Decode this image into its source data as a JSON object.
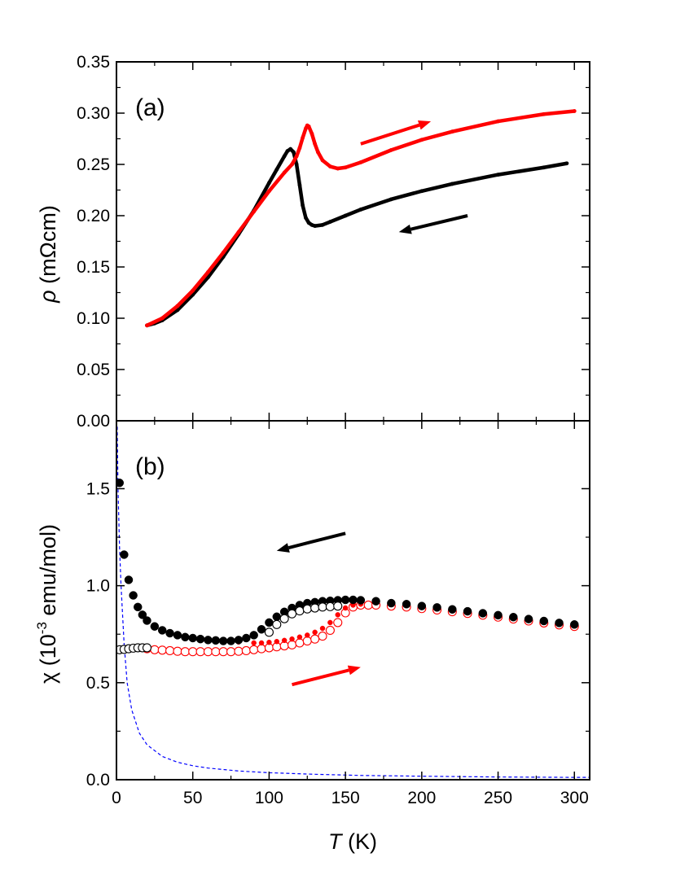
{
  "colors": {
    "cooling": "#000000",
    "warming": "#ff0000",
    "fit": "#0000ff"
  },
  "shared_xaxis": {
    "title_var": "T",
    "title_unit": " (K)",
    "xlim": [
      0,
      310
    ],
    "ticks": [
      0,
      50,
      100,
      150,
      200,
      250,
      300
    ],
    "tick_labels": [
      "0",
      "50",
      "100",
      "150",
      "200",
      "250",
      "300"
    ]
  },
  "chart_data": [
    {
      "type": "line",
      "panel_label": "(a)",
      "ylabel_symbol": "ρ",
      "ylabel_unit": " (mΩcm)",
      "xlim": [
        0,
        310
      ],
      "ylim": [
        0,
        0.35
      ],
      "yticks": [
        0,
        0.05,
        0.1,
        0.15,
        0.2,
        0.25,
        0.3,
        0.35
      ],
      "ytick_labels": [
        "0.00",
        "0.05",
        "0.10",
        "0.15",
        "0.20",
        "0.25",
        "0.30",
        "0.35"
      ],
      "grid": false,
      "legend": "none",
      "series": [
        {
          "key": "cooling",
          "color": "#000000",
          "x": [
            20,
            25,
            30,
            40,
            50,
            60,
            70,
            80,
            90,
            100,
            105,
            110,
            112,
            114,
            116,
            118,
            120,
            122,
            124,
            126,
            128,
            130,
            135,
            140,
            150,
            160,
            180,
            200,
            220,
            250,
            280,
            295
          ],
          "y": [
            0.093,
            0.095,
            0.098,
            0.108,
            0.123,
            0.14,
            0.16,
            0.182,
            0.205,
            0.232,
            0.245,
            0.258,
            0.263,
            0.265,
            0.262,
            0.25,
            0.23,
            0.21,
            0.198,
            0.193,
            0.191,
            0.19,
            0.191,
            0.194,
            0.2,
            0.206,
            0.216,
            0.224,
            0.231,
            0.24,
            0.247,
            0.251
          ]
        },
        {
          "key": "warming",
          "color": "#ff0000",
          "x": [
            20,
            30,
            40,
            50,
            60,
            70,
            80,
            90,
            100,
            110,
            115,
            118,
            120,
            122,
            124,
            125,
            126,
            128,
            130,
            132,
            135,
            140,
            145,
            150,
            160,
            180,
            200,
            220,
            250,
            280,
            300
          ],
          "y": [
            0.093,
            0.1,
            0.112,
            0.127,
            0.145,
            0.164,
            0.184,
            0.204,
            0.224,
            0.242,
            0.25,
            0.258,
            0.266,
            0.276,
            0.285,
            0.288,
            0.287,
            0.28,
            0.27,
            0.262,
            0.254,
            0.248,
            0.246,
            0.247,
            0.252,
            0.264,
            0.274,
            0.282,
            0.292,
            0.299,
            0.302
          ]
        }
      ],
      "arrows": [
        {
          "series": "warming",
          "from": [
            160,
            0.27
          ],
          "to": [
            206,
            0.292
          ]
        },
        {
          "series": "cooling",
          "from": [
            230,
            0.2
          ],
          "to": [
            185,
            0.184
          ]
        }
      ]
    },
    {
      "type": "scatter",
      "panel_label": "(b)",
      "ylabel_symbol": "χ",
      "ylabel_unit_pre": " (10",
      "ylabel_exponent": "-3",
      "ylabel_unit_post": " emu/mol)",
      "xlim": [
        0,
        310
      ],
      "ylim": [
        0,
        1.85
      ],
      "yticks": [
        0,
        0.5,
        1.0,
        1.5
      ],
      "ytick_labels": [
        "0.0",
        "0.5",
        "1.0",
        "1.5"
      ],
      "grid": false,
      "legend": "none",
      "series": [
        {
          "key": "cooling-filled",
          "color": "#000000",
          "marker": "filled-circle",
          "x": [
            2,
            5,
            8,
            11,
            14,
            17,
            20,
            25,
            30,
            35,
            40,
            45,
            50,
            55,
            60,
            65,
            70,
            75,
            80,
            85,
            90,
            95,
            100,
            105,
            110,
            115,
            120,
            125,
            130,
            135,
            140,
            145,
            150,
            155,
            160,
            170,
            180,
            190,
            200,
            210,
            220,
            230,
            240,
            250,
            260,
            270,
            280,
            290,
            300
          ],
          "y": [
            1.53,
            1.16,
            1.03,
            0.95,
            0.89,
            0.85,
            0.82,
            0.79,
            0.77,
            0.755,
            0.745,
            0.735,
            0.73,
            0.725,
            0.72,
            0.718,
            0.715,
            0.715,
            0.72,
            0.73,
            0.745,
            0.775,
            0.81,
            0.84,
            0.865,
            0.885,
            0.9,
            0.91,
            0.915,
            0.92,
            0.922,
            0.925,
            0.927,
            0.927,
            0.925,
            0.92,
            0.91,
            0.905,
            0.895,
            0.888,
            0.878,
            0.868,
            0.858,
            0.848,
            0.838,
            0.828,
            0.818,
            0.808,
            0.8
          ]
        },
        {
          "key": "cooling-open",
          "color": "#000000",
          "marker": "open-circle",
          "x": [
            2,
            5,
            8,
            11,
            14,
            17,
            20,
            100,
            105,
            110,
            115,
            120,
            125,
            130,
            135,
            140,
            145
          ],
          "y": [
            0.67,
            0.672,
            0.675,
            0.678,
            0.68,
            0.68,
            0.68,
            0.76,
            0.8,
            0.83,
            0.855,
            0.87,
            0.88,
            0.885,
            0.89,
            0.892,
            0.895
          ]
        },
        {
          "key": "warming-filled",
          "color": "#ff0000",
          "marker": "filled-circle",
          "x": [
            40,
            50,
            60,
            70,
            80,
            90,
            95,
            100,
            105,
            110,
            115,
            120,
            125,
            130,
            135,
            140,
            145,
            150,
            155,
            160
          ],
          "y": [
            0.745,
            0.73,
            0.72,
            0.715,
            0.71,
            0.705,
            0.705,
            0.708,
            0.712,
            0.718,
            0.725,
            0.735,
            0.745,
            0.76,
            0.78,
            0.81,
            0.85,
            0.885,
            0.9,
            0.905
          ]
        },
        {
          "key": "warming-open",
          "color": "#ff0000",
          "marker": "open-circle",
          "x": [
            20,
            25,
            30,
            35,
            40,
            45,
            50,
            55,
            60,
            65,
            70,
            75,
            80,
            85,
            90,
            95,
            100,
            105,
            110,
            115,
            120,
            125,
            130,
            135,
            140,
            145,
            150,
            155,
            160,
            165,
            170,
            180,
            190,
            200,
            210,
            220,
            230,
            240,
            250,
            260,
            270,
            280,
            290,
            300
          ],
          "y": [
            0.675,
            0.67,
            0.668,
            0.665,
            0.662,
            0.66,
            0.66,
            0.66,
            0.66,
            0.66,
            0.66,
            0.66,
            0.662,
            0.665,
            0.67,
            0.675,
            0.68,
            0.685,
            0.69,
            0.695,
            0.705,
            0.715,
            0.725,
            0.74,
            0.77,
            0.81,
            0.86,
            0.89,
            0.9,
            0.9,
            0.9,
            0.895,
            0.89,
            0.882,
            0.875,
            0.866,
            0.857,
            0.848,
            0.838,
            0.828,
            0.818,
            0.808,
            0.798,
            0.79
          ]
        },
        {
          "key": "fit",
          "color": "#0000ff",
          "marker": "dashed-line",
          "x": [
            0.5,
            1,
            2,
            3,
            5,
            7,
            10,
            15,
            20,
            30,
            40,
            50,
            60,
            80,
            100,
            130,
            160,
            200,
            250,
            300,
            310
          ],
          "y": [
            1.82,
            1.5,
            1.2,
            1.0,
            0.7,
            0.5,
            0.36,
            0.24,
            0.18,
            0.12,
            0.09,
            0.072,
            0.06,
            0.045,
            0.036,
            0.028,
            0.022,
            0.018,
            0.014,
            0.012,
            0.012
          ]
        }
      ],
      "arrows": [
        {
          "series": "cooling",
          "from": [
            150,
            1.27
          ],
          "to": [
            105,
            1.18
          ]
        },
        {
          "series": "warming",
          "from": [
            115,
            0.49
          ],
          "to": [
            160,
            0.58
          ]
        }
      ]
    }
  ]
}
